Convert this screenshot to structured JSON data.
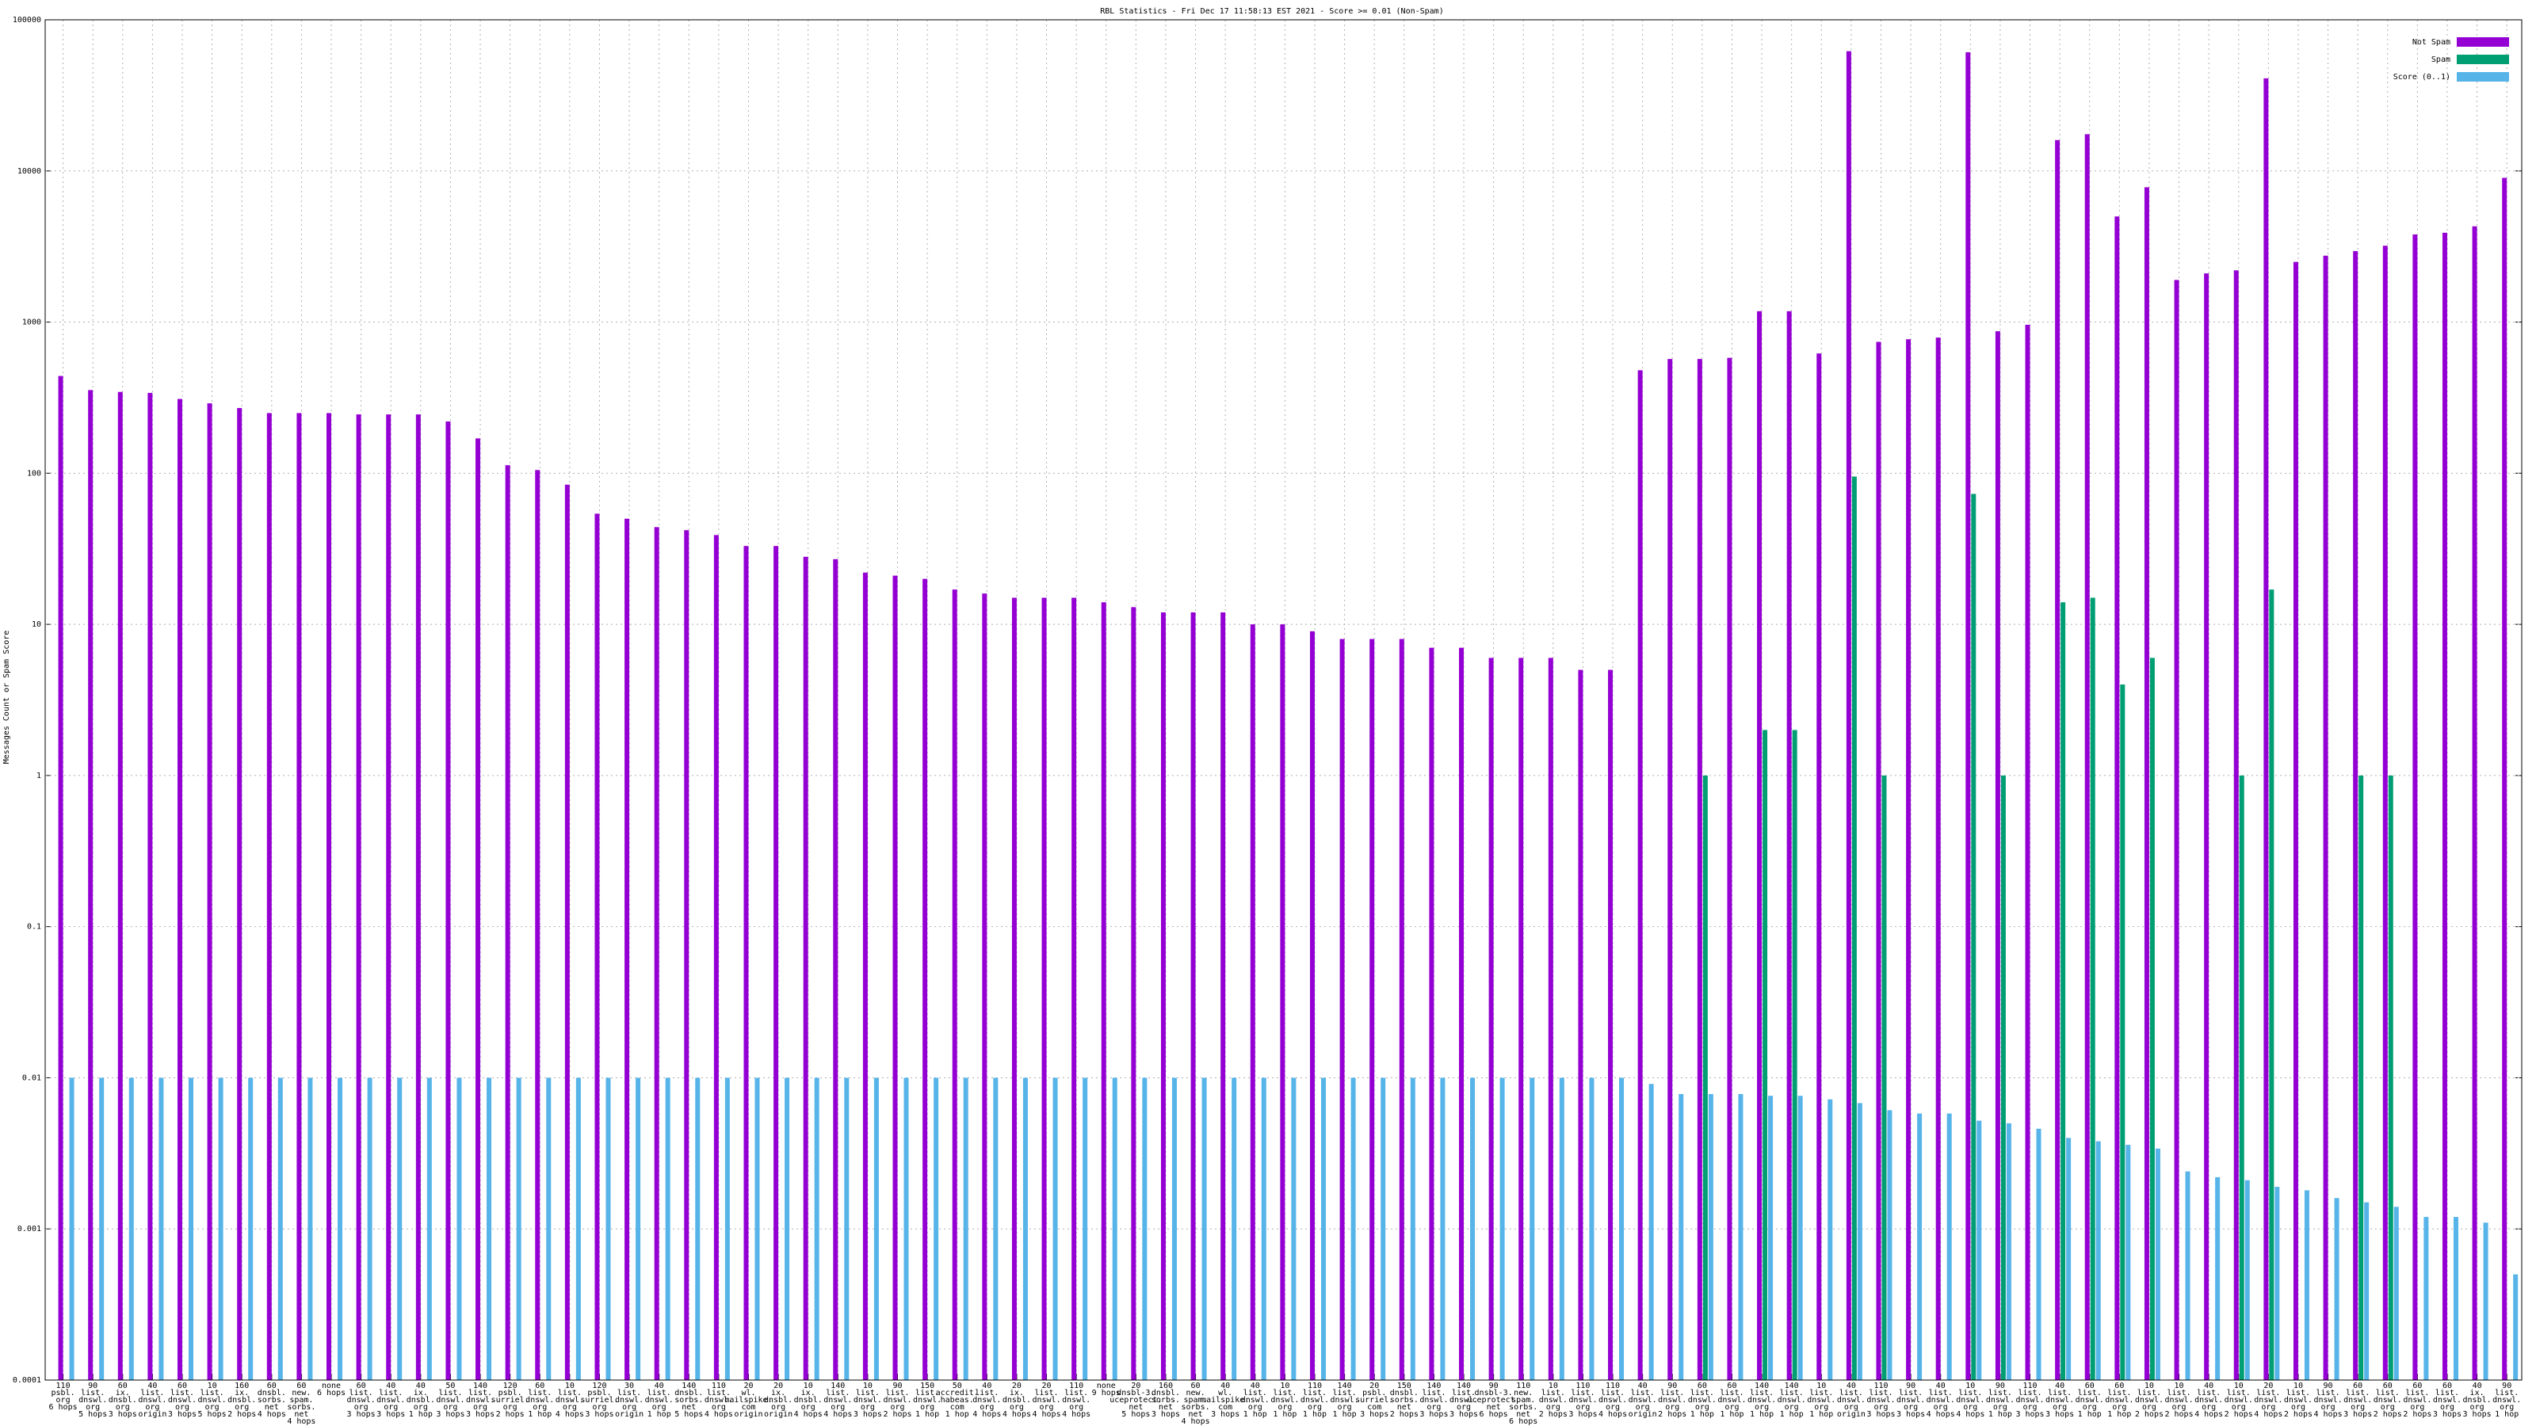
{
  "chart_data": {
    "type": "bar",
    "title": "RBL Statistics - Fri Dec 17 11:58:13 EST 2021 - Score >= 0.01 (Non-Spam)",
    "y_label": "Messages Count or Spam Score",
    "log_scale": true,
    "grid": true,
    "legend": "top-right",
    "ylim": [
      0.0001,
      100000
    ],
    "yticks": [
      0.0001,
      0.001,
      0.01,
      0.1,
      1,
      10,
      100,
      1000,
      10000,
      100000
    ],
    "categories": [
      [
        "110",
        "psbl.",
        "org",
        "6 hops"
      ],
      [
        "90",
        "list.",
        "dnswl.",
        "org",
        "5 hops"
      ],
      [
        "60",
        "ix.",
        "dnsbl.",
        "org",
        "3 hops"
      ],
      [
        "40",
        "list.",
        "dnswl.",
        "org",
        "origin"
      ],
      [
        "60",
        "list.",
        "dnswl.",
        "org",
        "3 hops"
      ],
      [
        "10",
        "list.",
        "dnswl.",
        "org",
        "5 hops"
      ],
      [
        "160",
        "ix.",
        "dnsbl.",
        "org",
        "2 hops"
      ],
      [
        "60",
        "dnsbl.",
        "sorbs.",
        "net",
        "4 hops"
      ],
      [
        "60",
        "new.",
        "spam.",
        "sorbs.",
        "net",
        "4 hops"
      ],
      [
        "none",
        "6 hops"
      ],
      [
        "60",
        "list.",
        "dnswl.",
        "org",
        "3 hops"
      ],
      [
        "40",
        "list.",
        "dnswl.",
        "org",
        "3 hops"
      ],
      [
        "40",
        "ix.",
        "dnsbl.",
        "org",
        "1 hop"
      ],
      [
        "50",
        "list.",
        "dnswl.",
        "org",
        "3 hops"
      ],
      [
        "140",
        "list.",
        "dnswl.",
        "org",
        "3 hops"
      ],
      [
        "120",
        "psbl.",
        "surriel.",
        "org",
        "2 hops"
      ],
      [
        "60",
        "list.",
        "dnswl.",
        "org",
        "1 hop"
      ],
      [
        "10",
        "list.",
        "dnswl.",
        "org",
        "4 hops"
      ],
      [
        "120",
        "psbl.",
        "surriel.",
        "org",
        "3 hops"
      ],
      [
        "30",
        "list.",
        "dnswl.",
        "org",
        "origin"
      ],
      [
        "40",
        "list.",
        "dnswl.",
        "org",
        "1 hop"
      ],
      [
        "140",
        "dnsbl.",
        "sorbs.",
        "net",
        "5 hops"
      ],
      [
        "110",
        "list.",
        "dnswl.",
        "org",
        "4 hops"
      ],
      [
        "20",
        "wl.",
        "mailspike.",
        "com",
        "origin"
      ],
      [
        "20",
        "ix.",
        "dnsbl.",
        "org",
        "origin"
      ],
      [
        "10",
        "ix.",
        "dnsbl.",
        "org",
        "4 hops"
      ],
      [
        "140",
        "list.",
        "dnswl.",
        "org",
        "4 hops"
      ],
      [
        "10",
        "list.",
        "dnswl.",
        "org",
        "3 hops"
      ],
      [
        "90",
        "list.",
        "dnswl.",
        "org",
        "2 hops"
      ],
      [
        "150",
        "list.",
        "dnswl.",
        "org",
        "1 hop"
      ],
      [
        "50",
        "accredit.",
        "habeas.",
        "com",
        "1 hop"
      ],
      [
        "40",
        "list.",
        "dnswl.",
        "org",
        "4 hops"
      ],
      [
        "20",
        "ix.",
        "dnsbl.",
        "org",
        "4 hops"
      ],
      [
        "20",
        "list.",
        "dnswl.",
        "org",
        "4 hops"
      ],
      [
        "110",
        "list.",
        "dnswl.",
        "org",
        "4 hops"
      ],
      [
        "none",
        "9 hops"
      ],
      [
        "20",
        "dnsbl-3.",
        "uceprotect.",
        "net",
        "5 hops"
      ],
      [
        "160",
        "dnsbl.",
        "sorbs.",
        "net",
        "3 hops"
      ],
      [
        "60",
        "new.",
        "spam.",
        "sorbs.",
        "net",
        "4 hops"
      ],
      [
        "40",
        "wl.",
        "mailspike.",
        "com",
        "3 hops"
      ],
      [
        "40",
        "list.",
        "dnswl.",
        "org",
        "1 hop"
      ],
      [
        "10",
        "list.",
        "dnswl.",
        "org",
        "1 hop"
      ],
      [
        "110",
        "list.",
        "dnswl.",
        "org",
        "1 hop"
      ],
      [
        "140",
        "list.",
        "dnswl.",
        "org",
        "1 hop"
      ],
      [
        "20",
        "psbl.",
        "surriel.",
        "com",
        "3 hops"
      ],
      [
        "150",
        "dnsbl.",
        "sorbs.",
        "net",
        "2 hops"
      ],
      [
        "140",
        "list.",
        "dnswl.",
        "org",
        "3 hops"
      ],
      [
        "140",
        "list.",
        "dnswl.",
        "org",
        "3 hops"
      ],
      [
        "90",
        "dnsbl-3.",
        "uceprotect.",
        "net",
        "6 hops"
      ],
      [
        "110",
        "new.",
        "spam.",
        "sorbs.",
        "net",
        "6 hops"
      ],
      [
        "10",
        "list.",
        "dnswl.",
        "org",
        "2 hops"
      ],
      [
        "110",
        "list.",
        "dnswl.",
        "org",
        "3 hops"
      ],
      [
        "110",
        "list.",
        "dnswl.",
        "org",
        "4 hops"
      ],
      [
        "40",
        "list.",
        "dnswl.",
        "org",
        "origin"
      ],
      [
        "90",
        "list.",
        "dnswl.",
        "org",
        "2 hops"
      ],
      [
        "60",
        "list.",
        "dnswl.",
        "org",
        "1 hop"
      ],
      [
        "60",
        "list.",
        "dnswl.",
        "org",
        "1 hop"
      ],
      [
        "140",
        "list.",
        "dnswl.",
        "org",
        "1 hop"
      ],
      [
        "140",
        "list.",
        "dnswl.",
        "org",
        "1 hop"
      ],
      [
        "10",
        "list.",
        "dnswl.",
        "org",
        "1 hop"
      ],
      [
        "40",
        "list.",
        "dnswl.",
        "org",
        "origin"
      ],
      [
        "110",
        "list.",
        "dnswl.",
        "org",
        "3 hops"
      ],
      [
        "90",
        "list.",
        "dnswl.",
        "org",
        "3 hops"
      ],
      [
        "40",
        "list.",
        "dnswl.",
        "org",
        "4 hops"
      ],
      [
        "10",
        "list.",
        "dnswl.",
        "org",
        "4 hops"
      ],
      [
        "90",
        "list.",
        "dnswl.",
        "org",
        "1 hop"
      ],
      [
        "110",
        "list.",
        "dnswl.",
        "org",
        "3 hops"
      ],
      [
        "40",
        "list.",
        "dnswl.",
        "org",
        "3 hops"
      ],
      [
        "60",
        "list.",
        "dnswl.",
        "org",
        "1 hop"
      ],
      [
        "60",
        "list.",
        "dnswl.",
        "org",
        "1 hop"
      ],
      [
        "10",
        "list.",
        "dnswl.",
        "org",
        "2 hops"
      ],
      [
        "10",
        "list.",
        "dnswl.",
        "org",
        "2 hops"
      ],
      [
        "40",
        "list.",
        "dnswl.",
        "org",
        "4 hops"
      ],
      [
        "10",
        "list.",
        "dnswl.",
        "org",
        "2 hops"
      ],
      [
        "20",
        "list.",
        "dnswl.",
        "org",
        "4 hops"
      ],
      [
        "10",
        "list.",
        "dnswl.",
        "org",
        "2 hops"
      ],
      [
        "90",
        "list.",
        "dnswl.",
        "org",
        "4 hops"
      ],
      [
        "60",
        "list.",
        "dnswl.",
        "org",
        "3 hops"
      ],
      [
        "60",
        "list.",
        "dnswl.",
        "org",
        "2 hops"
      ],
      [
        "60",
        "list.",
        "dnswl.",
        "org",
        "2 hops"
      ],
      [
        "60",
        "list.",
        "dnswl.",
        "org",
        "3 hops"
      ],
      [
        "40",
        "ix.",
        "dnsbl.",
        "org",
        "3 hops"
      ],
      [
        "90",
        "list.",
        "dnswl.",
        "org",
        "1 hop"
      ]
    ],
    "series": [
      {
        "name": "Not Spam",
        "color": "#9400d3",
        "values": [
          440,
          355,
          345,
          340,
          310,
          290,
          270,
          250,
          250,
          250,
          245,
          245,
          245,
          220,
          170,
          113,
          105,
          84,
          54,
          50,
          44,
          42,
          39,
          33,
          33,
          28,
          27,
          22,
          21,
          20,
          17,
          16,
          15,
          15,
          15,
          14,
          13,
          12,
          12,
          12,
          10,
          10,
          9,
          8,
          8,
          8,
          7,
          7,
          6,
          6,
          6,
          5,
          5,
          480,
          570,
          570,
          580,
          1180,
          1180,
          620,
          62000,
          740,
          770,
          790,
          61000,
          870,
          960,
          16000,
          17500,
          5000,
          7800,
          1900,
          2100,
          2200,
          41000,
          2500,
          2750,
          2950,
          3200,
          3800,
          3900,
          4300,
          9000
        ]
      },
      {
        "name": "Spam",
        "color": "#009e73",
        "values": [
          null,
          null,
          null,
          null,
          null,
          null,
          null,
          null,
          null,
          null,
          null,
          null,
          null,
          null,
          null,
          null,
          null,
          null,
          null,
          null,
          null,
          null,
          null,
          null,
          null,
          null,
          null,
          null,
          null,
          null,
          null,
          null,
          null,
          null,
          null,
          null,
          null,
          null,
          null,
          null,
          null,
          null,
          null,
          null,
          null,
          null,
          null,
          null,
          null,
          null,
          null,
          null,
          null,
          null,
          null,
          1,
          null,
          2,
          2,
          null,
          95,
          1,
          null,
          null,
          73,
          1,
          null,
          14,
          15,
          4,
          6,
          null,
          null,
          1,
          17,
          null,
          null,
          1,
          1,
          null,
          null,
          null,
          null
        ]
      },
      {
        "name": "Score (0..1)",
        "color": "#56b4e9",
        "values": [
          0.01,
          0.01,
          0.01,
          0.01,
          0.01,
          0.01,
          0.01,
          0.01,
          0.01,
          0.01,
          0.01,
          0.01,
          0.01,
          0.01,
          0.01,
          0.01,
          0.01,
          0.01,
          0.01,
          0.01,
          0.01,
          0.01,
          0.01,
          0.01,
          0.01,
          0.01,
          0.01,
          0.01,
          0.01,
          0.01,
          0.01,
          0.01,
          0.01,
          0.01,
          0.01,
          0.01,
          0.01,
          0.01,
          0.01,
          0.01,
          0.01,
          0.01,
          0.01,
          0.01,
          0.01,
          0.01,
          0.01,
          0.01,
          0.01,
          0.01,
          0.01,
          0.01,
          0.01,
          0.0091,
          0.0078,
          0.0078,
          0.0078,
          0.0076,
          0.0076,
          0.0072,
          0.0068,
          0.0061,
          0.0058,
          0.0058,
          0.0052,
          0.005,
          0.0046,
          0.004,
          0.0038,
          0.0036,
          0.0034,
          0.0024,
          0.0022,
          0.0021,
          0.0019,
          0.0018,
          0.0016,
          0.0015,
          0.0014,
          0.0012,
          0.0012,
          0.0011,
          0.0005
        ]
      }
    ]
  }
}
